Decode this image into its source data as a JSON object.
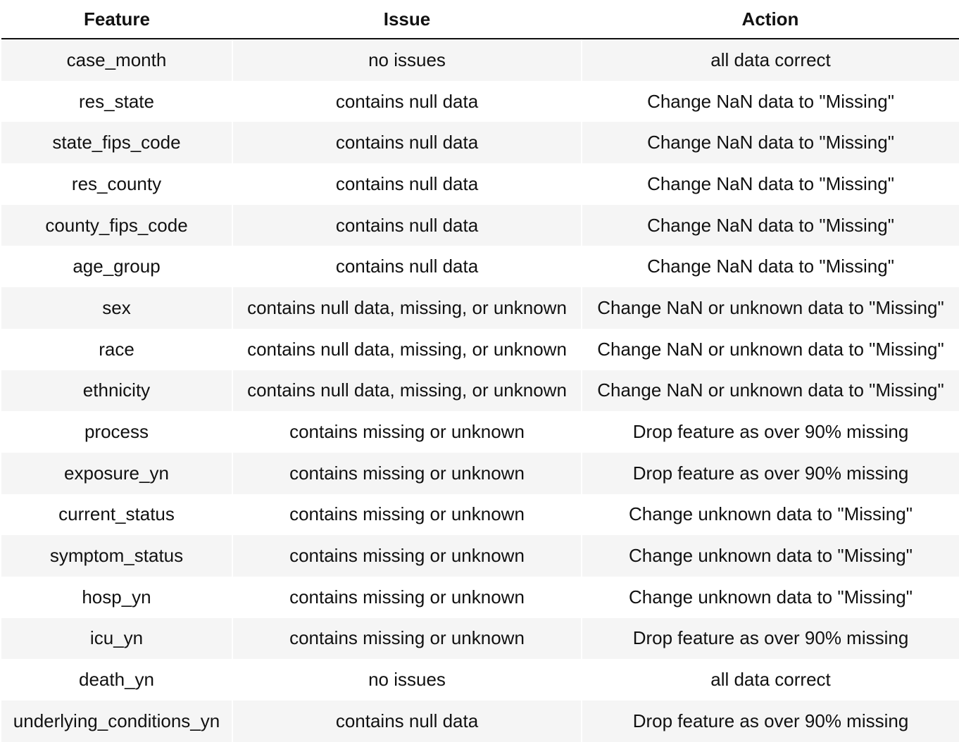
{
  "headers": [
    "Feature",
    "Issue",
    "Action"
  ],
  "rows": [
    [
      "case_month",
      "no issues",
      "all data correct"
    ],
    [
      "res_state",
      "contains null data",
      "Change NaN data to \"Missing\""
    ],
    [
      "state_fips_code",
      "contains null data",
      "Change NaN data to \"Missing\""
    ],
    [
      "res_county",
      "contains null data",
      "Change NaN data to \"Missing\""
    ],
    [
      "county_fips_code",
      "contains null data",
      "Change NaN data to \"Missing\""
    ],
    [
      "age_group",
      "contains null data",
      "Change NaN data to \"Missing\""
    ],
    [
      "sex",
      "contains null data, missing, or unknown",
      "Change NaN or unknown data to \"Missing\""
    ],
    [
      "race",
      "contains null data, missing, or unknown",
      "Change NaN or unknown data to \"Missing\""
    ],
    [
      "ethnicity",
      "contains null data, missing, or unknown",
      "Change NaN or unknown data to \"Missing\""
    ],
    [
      "process",
      "contains missing or unknown",
      "Drop feature as over 90% missing"
    ],
    [
      "exposure_yn",
      "contains missing or unknown",
      "Drop feature as over 90% missing"
    ],
    [
      "current_status",
      "contains missing or unknown",
      "Change unknown data to \"Missing\""
    ],
    [
      "symptom_status",
      "contains missing or unknown",
      "Change unknown data to \"Missing\""
    ],
    [
      "hosp_yn",
      "contains missing or unknown",
      "Change unknown data to \"Missing\""
    ],
    [
      "icu_yn",
      "contains missing or unknown",
      "Drop feature as over 90% missing"
    ],
    [
      "death_yn",
      "no issues",
      "all data correct"
    ],
    [
      "underlying_conditions_yn",
      "contains null data",
      "Drop feature as over 90% missing"
    ]
  ]
}
